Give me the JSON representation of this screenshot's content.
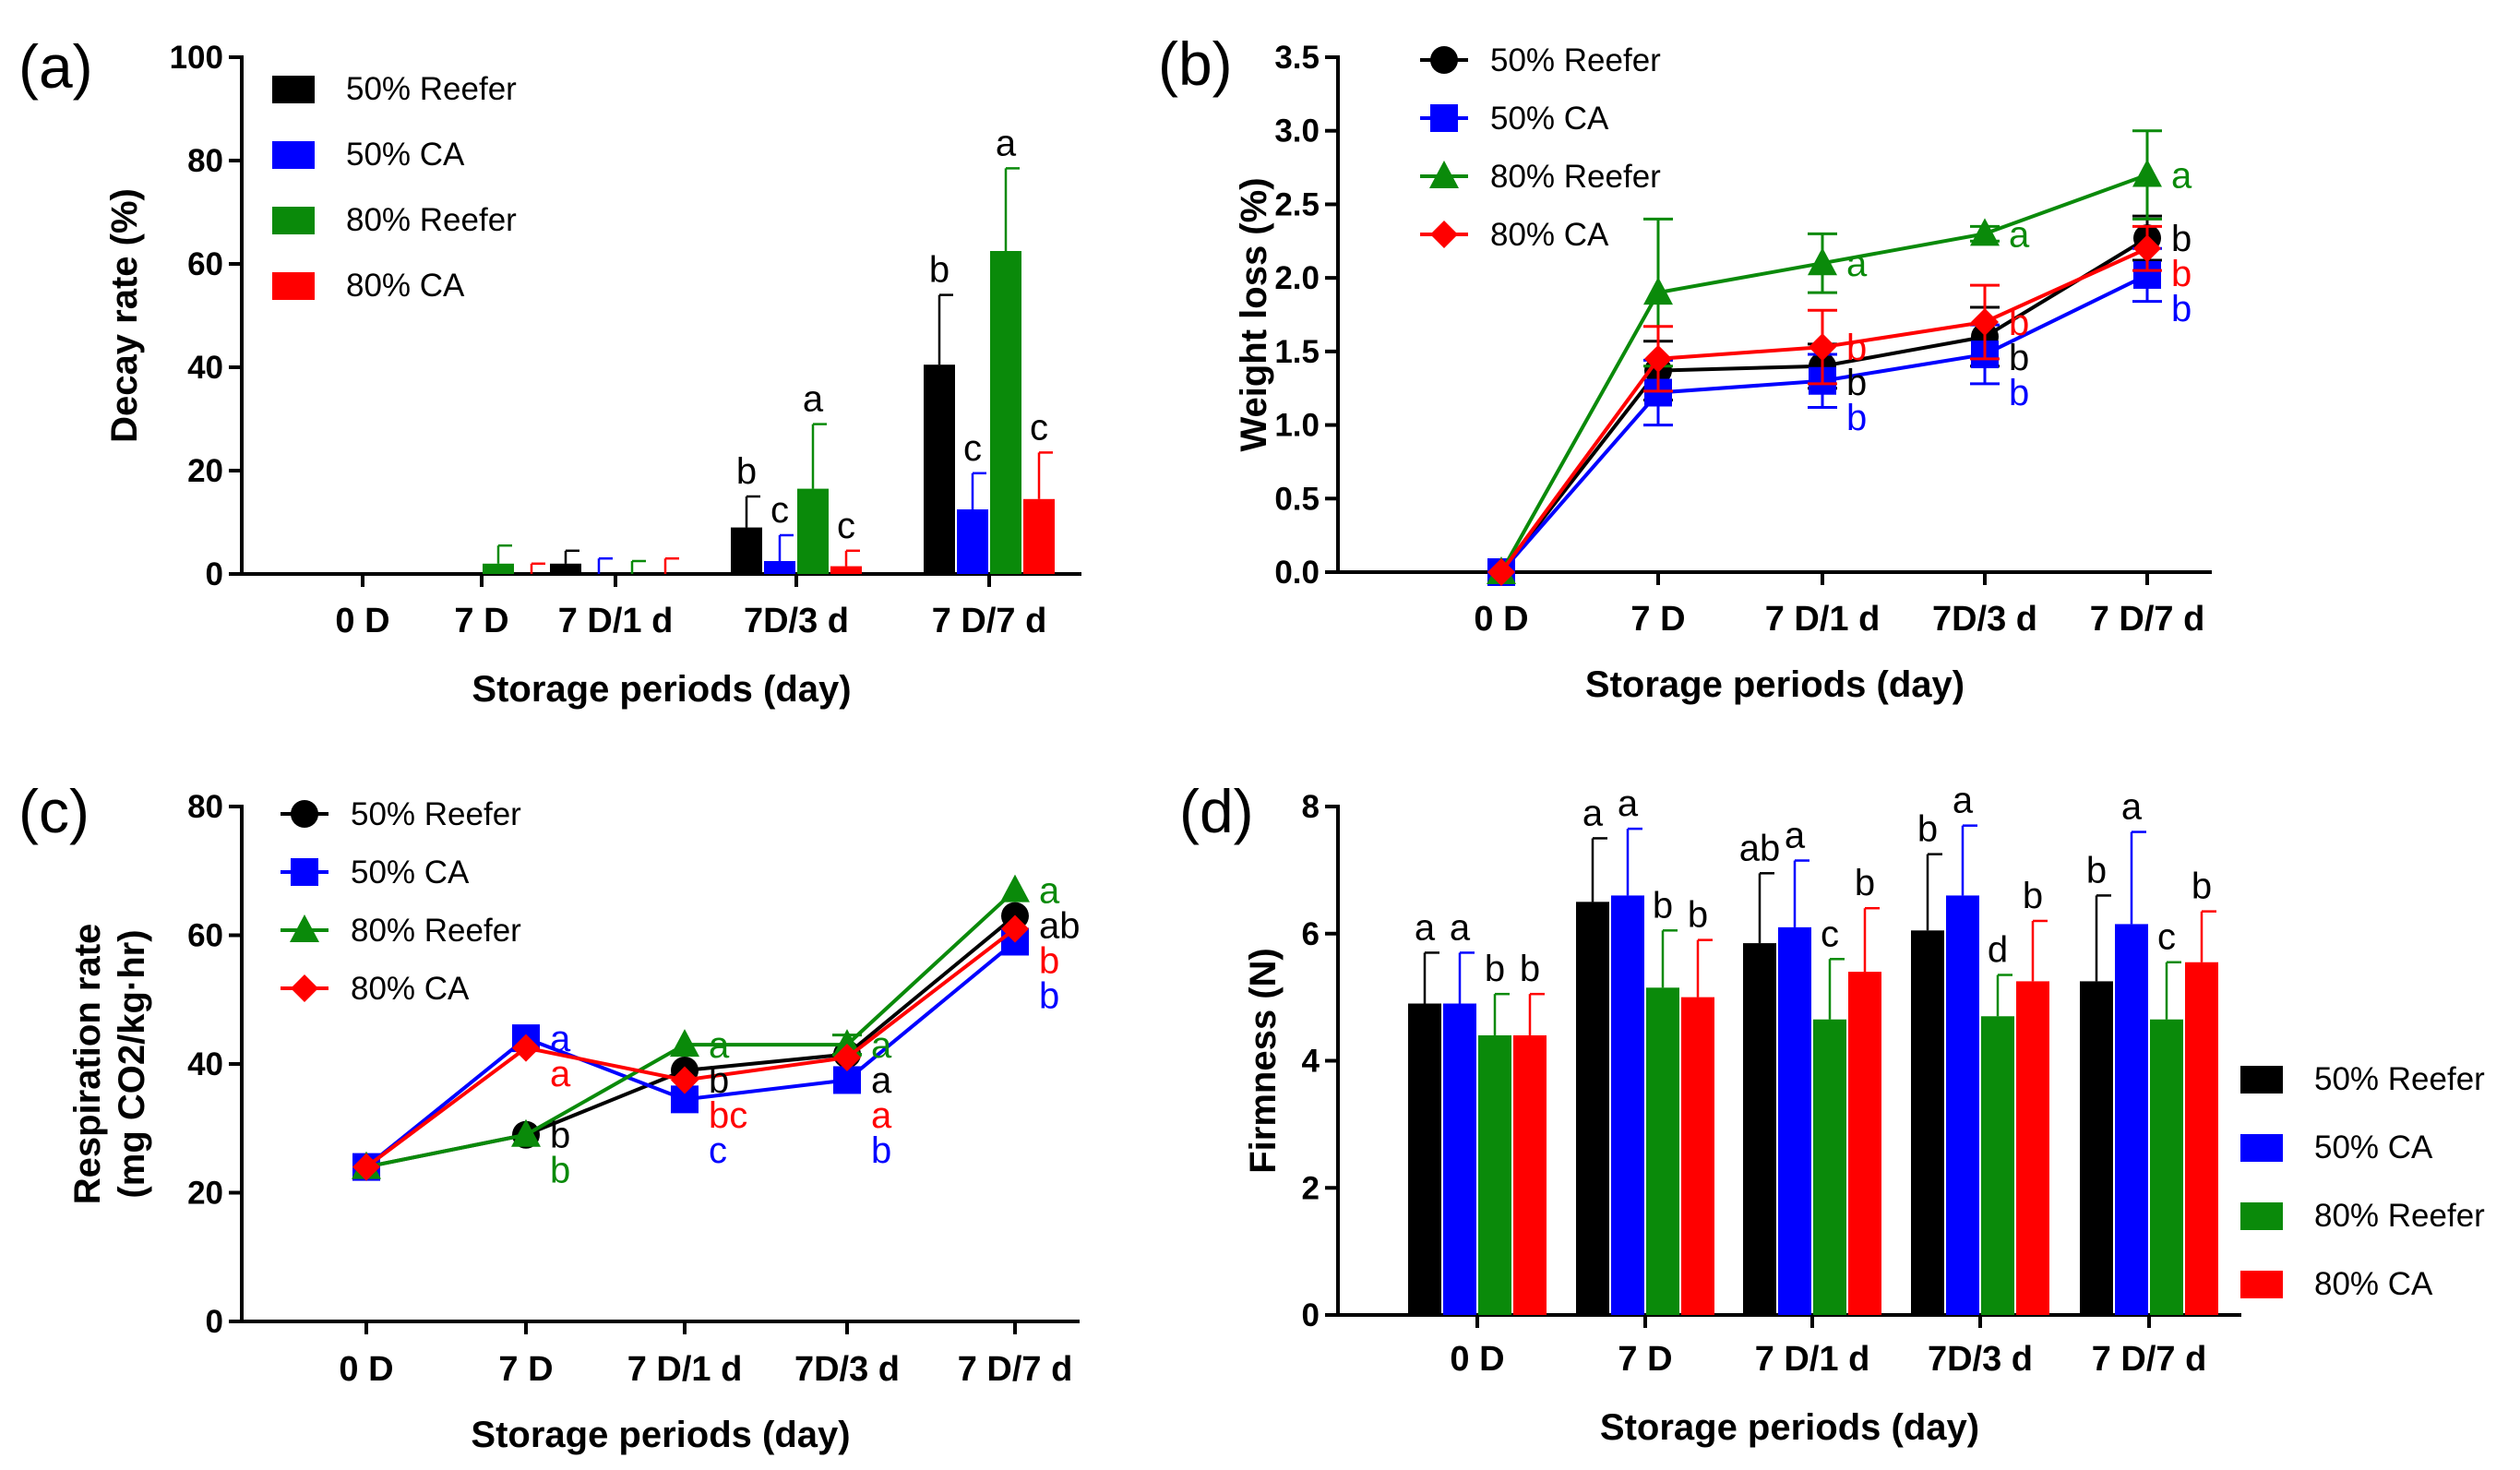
{
  "colors": {
    "50% Reefer": "#000000",
    "50% CA": "#0000ff",
    "80% Reefer": "#0a8a0a",
    "80% CA": "#ff0000"
  },
  "chart_data": [
    {
      "type": "bar",
      "panel_label": "(a)",
      "xlabel": "Storage periods (day)",
      "ylabel": "Decay rate (%)",
      "ylim": [
        0,
        100
      ],
      "yticks": [
        "0",
        "20",
        "40",
        "60",
        "80",
        "100"
      ],
      "categories": [
        "0 D",
        "7 D",
        "7 D/1 d",
        "7D/3 d",
        "7 D/7 d"
      ],
      "legend_position": "top-left",
      "series": [
        {
          "name": "50% Reefer",
          "values": [
            0,
            0,
            2,
            9,
            40.5
          ],
          "errors": [
            0,
            0,
            2.5,
            6,
            13.5
          ],
          "letters": [
            "",
            "",
            "",
            "b",
            "b"
          ]
        },
        {
          "name": "50% CA",
          "values": [
            0,
            0,
            0,
            2.5,
            12.5
          ],
          "errors": [
            0,
            0,
            3,
            5,
            7
          ],
          "letters": [
            "",
            "",
            "",
            "c",
            "c"
          ]
        },
        {
          "name": "80% Reefer",
          "values": [
            0,
            2,
            0,
            16.5,
            62.5
          ],
          "errors": [
            0,
            3.5,
            2.5,
            12.5,
            16
          ],
          "letters": [
            "",
            "",
            "",
            "a",
            "a"
          ]
        },
        {
          "name": "80% CA",
          "values": [
            0,
            0,
            0,
            1.5,
            14.5
          ],
          "errors": [
            0,
            2,
            3,
            3,
            9
          ],
          "letters": [
            "",
            "",
            "",
            "c",
            "c"
          ]
        }
      ]
    },
    {
      "type": "line",
      "panel_label": "(b)",
      "xlabel": "Storage periods (day)",
      "ylabel": "Weight loss (%)",
      "ylim": [
        0,
        3.5
      ],
      "yticks": [
        "0.0",
        "0.5",
        "1.0",
        "1.5",
        "2.0",
        "2.5",
        "3.0",
        "3.5"
      ],
      "categories": [
        "0 D",
        "7 D",
        "7 D/1 d",
        "7D/3 d",
        "7 D/7 d"
      ],
      "legend_position": "top-left",
      "series": [
        {
          "name": "50% Reefer",
          "marker": "circle",
          "values": [
            0,
            1.37,
            1.4,
            1.6,
            2.27
          ],
          "errors": [
            0,
            0.2,
            0.15,
            0.2,
            0.15
          ],
          "letters": [
            "",
            "",
            "b",
            "b",
            "b"
          ]
        },
        {
          "name": "50% CA",
          "marker": "square",
          "values": [
            0,
            1.22,
            1.3,
            1.48,
            2.02
          ],
          "errors": [
            0,
            0.22,
            0.18,
            0.2,
            0.18
          ],
          "letters": [
            "",
            "",
            "b",
            "b",
            "b"
          ]
        },
        {
          "name": "80% Reefer",
          "marker": "triangle",
          "values": [
            0,
            1.9,
            2.1,
            2.3,
            2.7
          ],
          "errors": [
            0,
            0.5,
            0.2,
            0.05,
            0.3
          ],
          "letters": [
            "",
            "",
            "a",
            "a",
            "a"
          ]
        },
        {
          "name": "80% CA",
          "marker": "diamond",
          "values": [
            0,
            1.45,
            1.53,
            1.7,
            2.2
          ],
          "errors": [
            0,
            0.22,
            0.25,
            0.25,
            0.15
          ],
          "letters": [
            "",
            "",
            "b",
            "b",
            "b"
          ]
        }
      ]
    },
    {
      "type": "line",
      "panel_label": "(c)",
      "xlabel": "Storage periods (day)",
      "ylabel_line1": "Respiration rate",
      "ylabel_line2": "(mg CO2/kg·hr)",
      "ylim": [
        0,
        80
      ],
      "yticks": [
        "0",
        "20",
        "40",
        "60",
        "80"
      ],
      "categories": [
        "0 D",
        "7 D",
        "7 D/1 d",
        "7D/3 d",
        "7 D/7 d"
      ],
      "legend_position": "top-left",
      "series": [
        {
          "name": "50% Reefer",
          "marker": "circle",
          "values": [
            24,
            29,
            39,
            41.5,
            63
          ],
          "errors": [
            0,
            0,
            0,
            0,
            0
          ],
          "letters": [
            "",
            "b",
            "b",
            "a",
            "ab"
          ]
        },
        {
          "name": "50% CA",
          "marker": "square",
          "values": [
            24,
            44,
            34.5,
            37.5,
            59
          ],
          "errors": [
            0,
            0,
            0,
            0,
            0
          ],
          "letters": [
            "",
            "a",
            "c",
            "b",
            "b"
          ]
        },
        {
          "name": "80% Reefer",
          "marker": "triangle",
          "values": [
            24,
            29,
            43,
            43,
            67
          ],
          "errors": [
            0,
            0,
            0,
            1.5,
            0
          ],
          "letters": [
            "",
            "b",
            "a",
            "a",
            "a"
          ]
        },
        {
          "name": "80% CA",
          "marker": "diamond",
          "values": [
            24,
            42.5,
            37.5,
            41,
            61
          ],
          "errors": [
            0,
            0,
            0,
            0,
            0
          ],
          "letters": [
            "",
            "a",
            "bc",
            "a",
            "b"
          ]
        }
      ]
    },
    {
      "type": "bar",
      "panel_label": "(d)",
      "xlabel": "Storage periods (day)",
      "ylabel": "Firmness (N)",
      "ylim": [
        0,
        8
      ],
      "yticks": [
        "0",
        "2",
        "4",
        "6",
        "8"
      ],
      "categories": [
        "0 D",
        "7 D",
        "7 D/1 d",
        "7D/3 d",
        "7 D/7 d"
      ],
      "legend_position": "right",
      "series": [
        {
          "name": "50% Reefer",
          "values": [
            4.9,
            6.5,
            5.85,
            6.05,
            5.25
          ],
          "errors": [
            0.8,
            1.0,
            1.1,
            1.2,
            1.35
          ],
          "letters": [
            "a",
            "a",
            "ab",
            "b",
            "b"
          ]
        },
        {
          "name": "50% CA",
          "values": [
            4.9,
            6.6,
            6.1,
            6.6,
            6.15
          ],
          "errors": [
            0.8,
            1.05,
            1.05,
            1.1,
            1.45
          ],
          "letters": [
            "a",
            "a",
            "a",
            "a",
            "a"
          ]
        },
        {
          "name": "80% Reefer",
          "values": [
            4.4,
            5.15,
            4.65,
            4.7,
            4.65
          ],
          "errors": [
            0.65,
            0.9,
            0.95,
            0.65,
            0.9
          ],
          "letters": [
            "b",
            "b",
            "c",
            "d",
            "c"
          ]
        },
        {
          "name": "80% CA",
          "values": [
            4.4,
            5.0,
            5.4,
            5.25,
            5.55
          ],
          "errors": [
            0.65,
            0.9,
            1.0,
            0.95,
            0.8
          ],
          "letters": [
            "b",
            "b",
            "b",
            "b",
            "b"
          ]
        }
      ]
    }
  ]
}
